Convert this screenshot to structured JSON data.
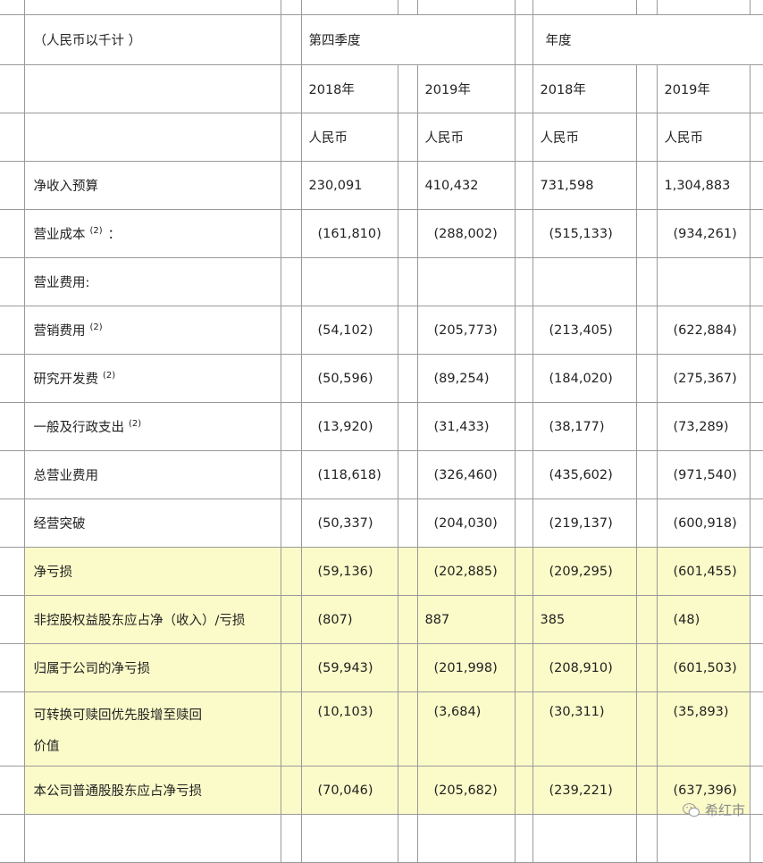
{
  "header": {
    "unit_label": "（人民币以千计 ）",
    "q4_label": "第四季度",
    "annual_label": "年度",
    "years": [
      "2018年",
      "2019年",
      "2018年",
      "2019年"
    ],
    "currency": [
      "人民币",
      "人民币",
      "人民币",
      "人民币"
    ]
  },
  "rows": [
    {
      "label": "净收入预算",
      "sup": "",
      "suffix": "",
      "values": [
        "230,091",
        "410,432",
        "731,598",
        "1,304,883"
      ],
      "highlight": false
    },
    {
      "label": "营业成本",
      "sup": "(2)",
      "suffix": "：",
      "values": [
        "(161,810)",
        "(288,002)",
        "(515,133)",
        "(934,261)"
      ],
      "highlight": false
    },
    {
      "label": "营业费用:",
      "sup": "",
      "suffix": "",
      "values": [
        "",
        "",
        "",
        ""
      ],
      "highlight": false
    },
    {
      "label": "营销费用",
      "sup": "(2)",
      "suffix": "",
      "values": [
        "(54,102)",
        "(205,773)",
        "(213,405)",
        "(622,884)"
      ],
      "highlight": false
    },
    {
      "label": "研究开发费",
      "sup": "(2)",
      "suffix": "",
      "values": [
        "(50,596)",
        "(89,254)",
        "(184,020)",
        "(275,367)"
      ],
      "highlight": false
    },
    {
      "label": "一般及行政支出",
      "sup": "(2)",
      "suffix": "",
      "values": [
        "(13,920)",
        "(31,433)",
        "(38,177)",
        "(73,289)"
      ],
      "highlight": false
    },
    {
      "label": "总营业费用",
      "sup": "",
      "suffix": "",
      "values": [
        "(118,618)",
        "(326,460)",
        "(435,602)",
        "(971,540)"
      ],
      "highlight": false
    },
    {
      "label": "经营突破",
      "sup": "",
      "suffix": "",
      "values": [
        "(50,337)",
        "(204,030)",
        "(219,137)",
        "(600,918)"
      ],
      "highlight": false
    },
    {
      "label": "净亏损",
      "sup": "",
      "suffix": "",
      "values": [
        "(59,136)",
        "(202,885)",
        "(209,295)",
        "(601,455)"
      ],
      "highlight": true
    },
    {
      "label": "非控股权益股东应占净（收入）/亏损",
      "sup": "",
      "suffix": "",
      "values": [
        "(807)",
        "887",
        "385",
        "(48)"
      ],
      "highlight": true
    },
    {
      "label": "归属于公司的净亏损",
      "sup": "",
      "suffix": "",
      "values": [
        "(59,943)",
        "(201,998)",
        "(208,910)",
        "(601,503)"
      ],
      "highlight": true
    },
    {
      "label": "可转换可赎回优先股增至赎回",
      "label2": "价值",
      "sup": "",
      "suffix": "",
      "values": [
        "(10,103)",
        "(3,684)",
        "(30,311)",
        "(35,893)"
      ],
      "highlight": true
    },
    {
      "label": "本公司普通股股东应占净亏损",
      "sup": "",
      "suffix": "",
      "values": [
        "(70,046)",
        "(205,682)",
        "(239,221)",
        "(637,396)"
      ],
      "highlight": true
    }
  ],
  "watermark": {
    "text": "希红市",
    "icon": "wechat-icon"
  }
}
